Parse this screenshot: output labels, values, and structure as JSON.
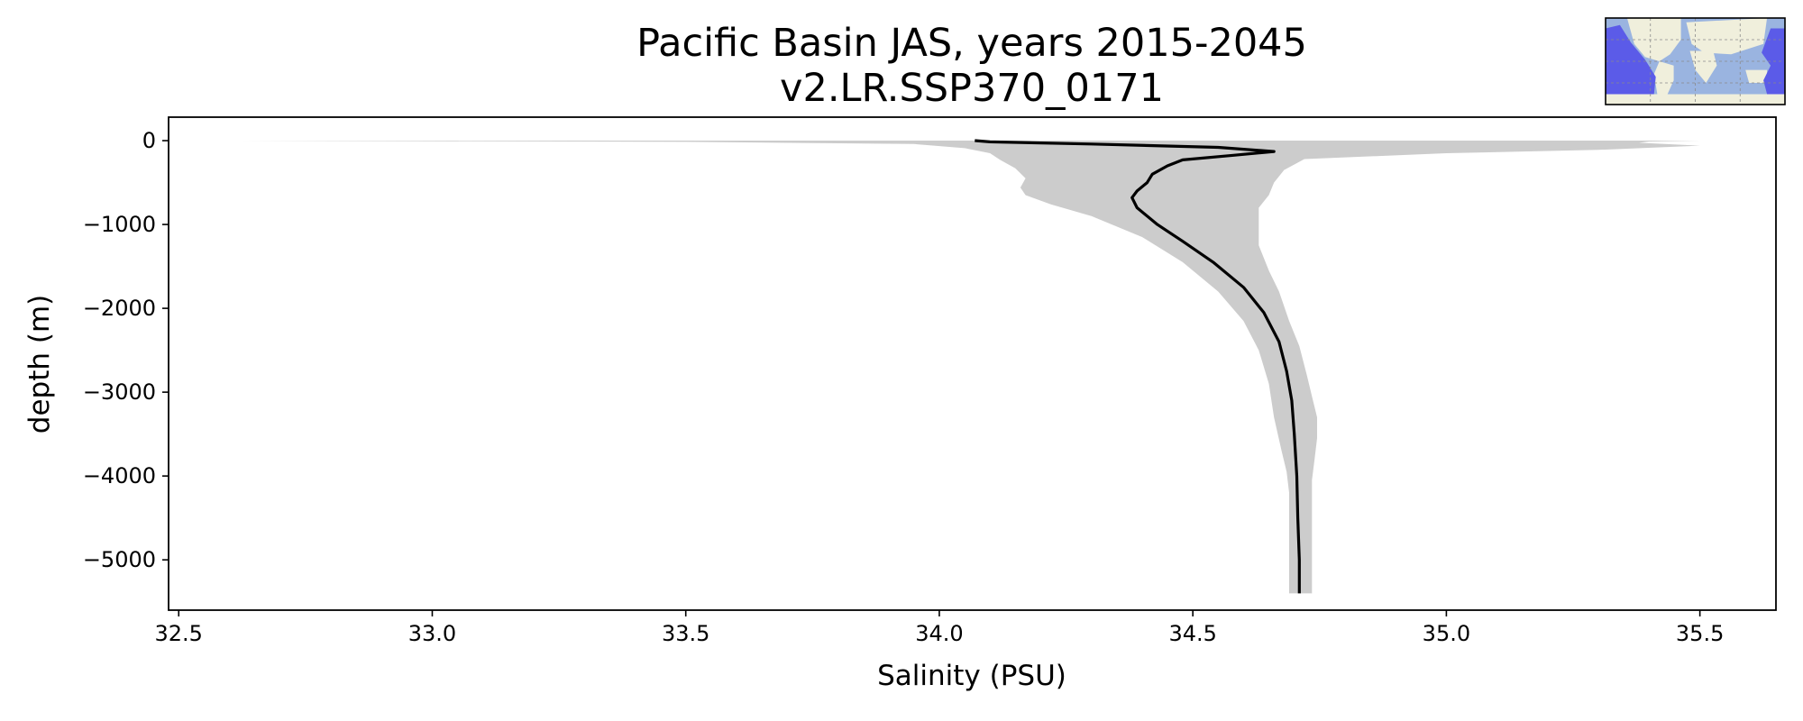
{
  "chart_data": {
    "type": "line",
    "title_line1": "Pacific Basin JAS, years 2015-2045",
    "title_line2": "v2.LR.SSP370_0171",
    "xlabel": "Salinity (PSU)",
    "ylabel": "depth (m)",
    "xlim": [
      32.48,
      35.65
    ],
    "ylim": [
      -5600,
      280
    ],
    "xticks": [
      32.5,
      33.0,
      33.5,
      34.0,
      34.5,
      35.0,
      35.5
    ],
    "xtick_labels": [
      "32.5",
      "33.0",
      "33.5",
      "34.0",
      "34.5",
      "35.0",
      "35.5"
    ],
    "yticks": [
      0,
      -1000,
      -2000,
      -3000,
      -4000,
      -5000
    ],
    "ytick_labels": [
      "0",
      "−1000",
      "−2000",
      "−3000",
      "−4000",
      "−5000"
    ],
    "grid": false,
    "series": [
      {
        "kind": "mean-line",
        "color": "#000000",
        "points": [
          [
            34.07,
            0
          ],
          [
            34.1,
            -15
          ],
          [
            34.3,
            -40
          ],
          [
            34.55,
            -80
          ],
          [
            34.66,
            -130
          ],
          [
            34.58,
            -175
          ],
          [
            34.48,
            -230
          ],
          [
            34.45,
            -300
          ],
          [
            34.42,
            -400
          ],
          [
            34.41,
            -500
          ],
          [
            34.39,
            -600
          ],
          [
            34.38,
            -680
          ],
          [
            34.39,
            -800
          ],
          [
            34.43,
            -1000
          ],
          [
            34.48,
            -1200
          ],
          [
            34.54,
            -1450
          ],
          [
            34.6,
            -1750
          ],
          [
            34.64,
            -2050
          ],
          [
            34.67,
            -2400
          ],
          [
            34.685,
            -2750
          ],
          [
            34.695,
            -3100
          ],
          [
            34.7,
            -3500
          ],
          [
            34.705,
            -4000
          ],
          [
            34.707,
            -4500
          ],
          [
            34.71,
            -5000
          ],
          [
            34.71,
            -5400
          ]
        ]
      },
      {
        "kind": "range-band",
        "color": "#cccccc",
        "lower": [
          [
            32.62,
            0
          ],
          [
            33.5,
            -15
          ],
          [
            33.95,
            -40
          ],
          [
            34.05,
            -90
          ],
          [
            34.1,
            -150
          ],
          [
            34.12,
            -230
          ],
          [
            34.15,
            -330
          ],
          [
            34.17,
            -450
          ],
          [
            34.16,
            -560
          ],
          [
            34.17,
            -650
          ],
          [
            34.22,
            -760
          ],
          [
            34.3,
            -900
          ],
          [
            34.4,
            -1150
          ],
          [
            34.48,
            -1450
          ],
          [
            34.55,
            -1800
          ],
          [
            34.6,
            -2150
          ],
          [
            34.63,
            -2500
          ],
          [
            34.65,
            -2900
          ],
          [
            34.66,
            -3300
          ],
          [
            34.675,
            -3700
          ],
          [
            34.685,
            -3950
          ],
          [
            34.69,
            -4200
          ],
          [
            34.69,
            -5000
          ],
          [
            34.69,
            -5400
          ]
        ],
        "upper": [
          [
            35.5,
            0
          ],
          [
            35.4,
            -10
          ],
          [
            35.38,
            -25
          ],
          [
            35.5,
            -60
          ],
          [
            35.3,
            -110
          ],
          [
            35.0,
            -150
          ],
          [
            34.72,
            -220
          ],
          [
            34.68,
            -350
          ],
          [
            34.66,
            -500
          ],
          [
            34.65,
            -650
          ],
          [
            34.63,
            -800
          ],
          [
            34.63,
            -1000
          ],
          [
            34.63,
            -1250
          ],
          [
            34.65,
            -1550
          ],
          [
            34.67,
            -1800
          ],
          [
            34.69,
            -2150
          ],
          [
            34.71,
            -2450
          ],
          [
            34.725,
            -2800
          ],
          [
            34.735,
            -3050
          ],
          [
            34.745,
            -3300
          ],
          [
            34.745,
            -3550
          ],
          [
            34.74,
            -3800
          ],
          [
            34.735,
            -4050
          ],
          [
            34.735,
            -4500
          ],
          [
            34.735,
            -5000
          ],
          [
            34.735,
            -5400
          ]
        ]
      }
    ],
    "inset_map": {
      "ocean_color": "#9ab4e0",
      "land_color": "#f0efdc",
      "highlight_color": "#5b5be8"
    }
  }
}
